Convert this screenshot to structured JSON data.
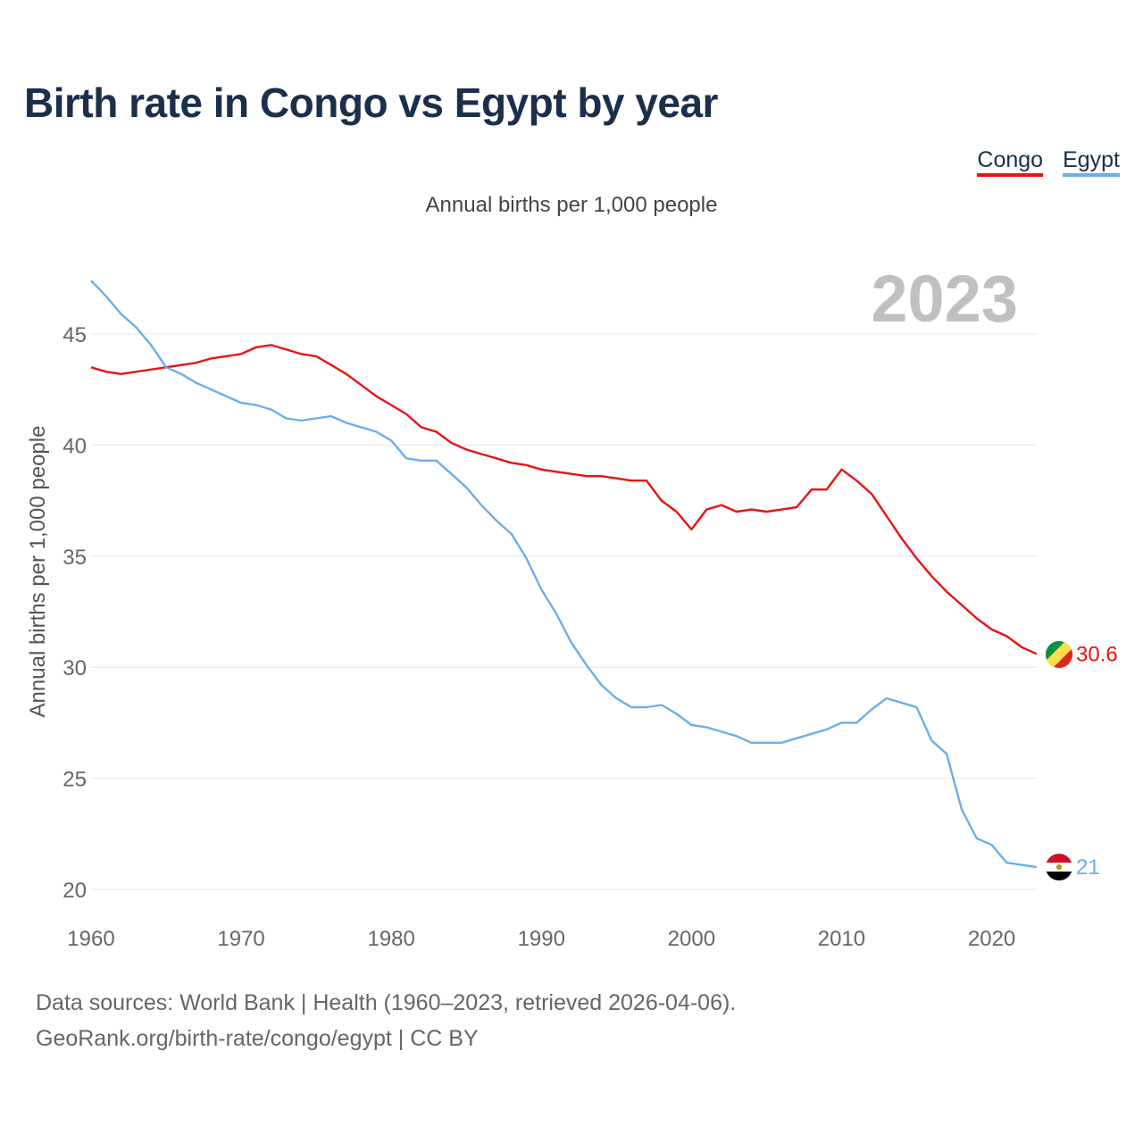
{
  "title": "Birth rate in Congo vs Egypt by year",
  "legend": [
    {
      "label": "Congo",
      "color": "#e8130f"
    },
    {
      "label": "Egypt",
      "color": "#6aaeea"
    }
  ],
  "sources": {
    "line1": "Data sources: World Bank | Health (1960–2023, retrieved 2026-04-06).",
    "line2": "GeoRank.org/birth-rate/congo/egypt | CC BY"
  },
  "chart_data": {
    "type": "line",
    "title": "Birth rate in Congo vs Egypt by year",
    "subtitle": "Annual births per 1,000 people",
    "xlabel": "",
    "ylabel": "Annual births per 1,000 people",
    "year_label": "2023",
    "xlim": [
      1960,
      2023
    ],
    "ylim": [
      20,
      47.5
    ],
    "x_ticks": [
      1960,
      1970,
      1980,
      1990,
      2000,
      2010,
      2020
    ],
    "y_ticks": [
      20,
      25,
      30,
      35,
      40,
      45
    ],
    "grid": true,
    "x": [
      1960,
      1961,
      1962,
      1963,
      1964,
      1965,
      1966,
      1967,
      1968,
      1969,
      1970,
      1971,
      1972,
      1973,
      1974,
      1975,
      1976,
      1977,
      1978,
      1979,
      1980,
      1981,
      1982,
      1983,
      1984,
      1985,
      1986,
      1987,
      1988,
      1989,
      1990,
      1991,
      1992,
      1993,
      1994,
      1995,
      1996,
      1997,
      1998,
      1999,
      2000,
      2001,
      2002,
      2003,
      2004,
      2005,
      2006,
      2007,
      2008,
      2009,
      2010,
      2011,
      2012,
      2013,
      2014,
      2015,
      2016,
      2017,
      2018,
      2019,
      2020,
      2021,
      2022,
      2023
    ],
    "series": [
      {
        "name": "Congo",
        "color": "#e8130f",
        "end_label": "30.6",
        "values": [
          43.5,
          43.3,
          43.2,
          43.3,
          43.4,
          43.5,
          43.6,
          43.7,
          43.9,
          44.0,
          44.1,
          44.4,
          44.5,
          44.3,
          44.1,
          44.0,
          43.6,
          43.2,
          42.7,
          42.2,
          41.8,
          41.4,
          40.8,
          40.6,
          40.1,
          39.8,
          39.6,
          39.4,
          39.2,
          39.1,
          38.9,
          38.8,
          38.7,
          38.6,
          38.6,
          38.5,
          38.4,
          38.4,
          37.5,
          37.0,
          36.2,
          37.1,
          37.3,
          37.0,
          37.1,
          37.0,
          37.1,
          37.2,
          38.0,
          38.0,
          38.9,
          38.4,
          37.8,
          36.8,
          35.8,
          34.9,
          34.1,
          33.4,
          32.8,
          32.2,
          31.7,
          31.4,
          30.9,
          30.6
        ]
      },
      {
        "name": "Egypt",
        "color": "#6aaeea",
        "end_label": "21",
        "values": [
          47.4,
          46.7,
          45.9,
          45.3,
          44.5,
          43.5,
          43.2,
          42.8,
          42.5,
          42.2,
          41.9,
          41.8,
          41.6,
          41.2,
          41.1,
          41.2,
          41.3,
          41.0,
          40.8,
          40.6,
          40.2,
          39.4,
          39.3,
          39.3,
          38.7,
          38.1,
          37.3,
          36.6,
          36.0,
          34.9,
          33.5,
          32.4,
          31.1,
          30.1,
          29.2,
          28.6,
          28.2,
          28.2,
          28.3,
          27.9,
          27.4,
          27.3,
          27.1,
          26.9,
          26.6,
          26.6,
          26.6,
          26.8,
          27.0,
          27.2,
          27.5,
          27.5,
          28.1,
          28.6,
          28.4,
          28.2,
          26.7,
          26.1,
          23.6,
          22.3,
          22.0,
          21.2,
          21.1,
          21.0
        ]
      }
    ]
  }
}
